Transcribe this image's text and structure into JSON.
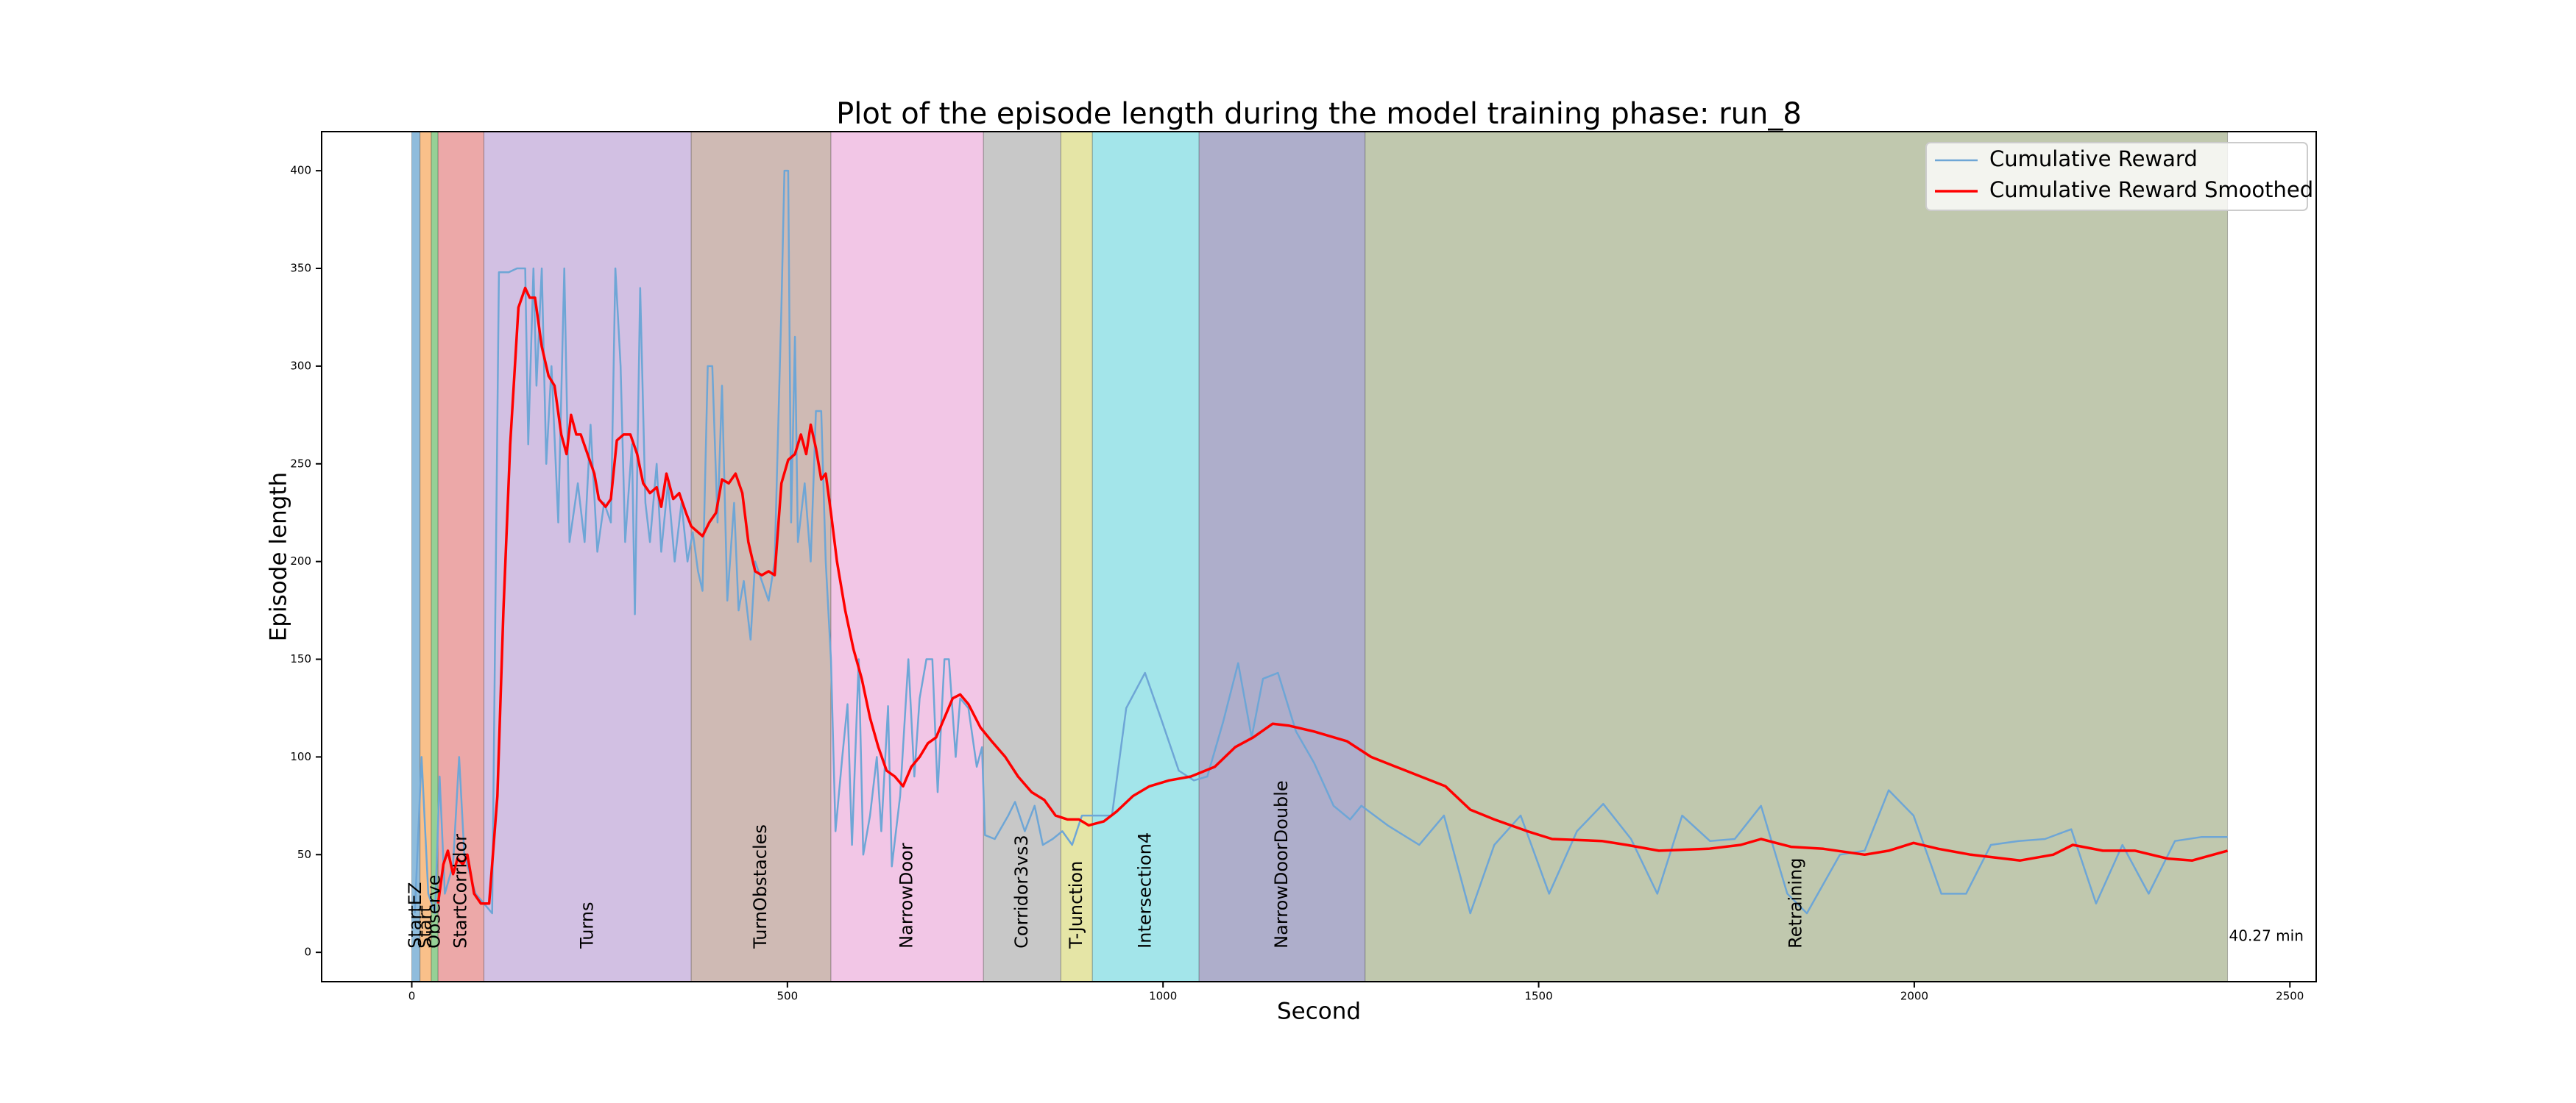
{
  "chart_data": {
    "type": "line",
    "title": "Plot of the episode length during the model training phase: run_8",
    "xlabel": "Second",
    "ylabel": "Episode length",
    "xlim": [
      -120,
      2535
    ],
    "ylim": [
      -15,
      420
    ],
    "xticks": [
      0,
      500,
      1000,
      1500,
      2000,
      2500
    ],
    "yticks": [
      0,
      50,
      100,
      150,
      200,
      250,
      300,
      350,
      400
    ],
    "legend": "upper right",
    "annotation": "40.27 min",
    "phases": [
      {
        "label": "StartEZ",
        "start": 0,
        "end": 11,
        "color": "#8fbcdc"
      },
      {
        "label": "Start",
        "start": 11,
        "end": 26,
        "color": "#f9c08a"
      },
      {
        "label": "Observe",
        "start": 26,
        "end": 35,
        "color": "#96d096"
      },
      {
        "label": "StartCorridor",
        "start": 35,
        "end": 96,
        "color": "#eca8a8"
      },
      {
        "label": "Turns",
        "start": 96,
        "end": 372,
        "color": "#d2c0e3"
      },
      {
        "label": "TurnObstacles",
        "start": 372,
        "end": 558,
        "color": "#cfbab4"
      },
      {
        "label": "NarrowDoor",
        "start": 558,
        "end": 761,
        "color": "#f2c6e6"
      },
      {
        "label": "Corridor3vs3",
        "start": 761,
        "end": 864,
        "color": "#c8c8c8"
      },
      {
        "label": "T-Junction",
        "start": 864,
        "end": 906,
        "color": "#e5e5a6"
      },
      {
        "label": "Intersection4",
        "start": 906,
        "end": 1048,
        "color": "#a3e5ea"
      },
      {
        "label": "NarrowDoorDouble",
        "start": 1048,
        "end": 1269,
        "color": "#aeaecb"
      },
      {
        "label": "Retraining",
        "start": 1269,
        "end": 2417,
        "color": "#c0c8ae"
      }
    ],
    "series": [
      {
        "name": "Cumulative Reward",
        "color": "#6ea6d6",
        "x": [
          4,
          13,
          22,
          31,
          37,
          44,
          55,
          63,
          70,
          85,
          96,
          107,
          116,
          129,
          140,
          151,
          155,
          162,
          166,
          173,
          179,
          186,
          195,
          203,
          210,
          221,
          230,
          238,
          247,
          256,
          265,
          271,
          278,
          284,
          293,
          297,
          304,
          311,
          317,
          326,
          332,
          341,
          350,
          359,
          367,
          374,
          381,
          387,
          394,
          400,
          407,
          413,
          420,
          429,
          435,
          442,
          451,
          457,
          466,
          475,
          483,
          492,
          496,
          501,
          505,
          510,
          514,
          523,
          531,
          538,
          545,
          551,
          558,
          564,
          573,
          580,
          586,
          595,
          601,
          610,
          619,
          625,
          634,
          639,
          650,
          661,
          669,
          676,
          685,
          693,
          700,
          709,
          715,
          724,
          730,
          741,
          752,
          759,
          763,
          776,
          794,
          803,
          816,
          829,
          840,
          853,
          866,
          879,
          892,
          916,
          932,
          951,
          976,
          997,
          1021,
          1041,
          1059,
          1080,
          1100,
          1118,
          1133,
          1153,
          1177,
          1201,
          1227,
          1249,
          1264,
          1299,
          1341,
          1374,
          1409,
          1441,
          1476,
          1514,
          1551,
          1586,
          1623,
          1658,
          1691,
          1728,
          1761,
          1796,
          1831,
          1857,
          1901,
          1934,
          1966,
          1999,
          2036,
          2069,
          2102,
          2139,
          2174,
          2209,
          2242,
          2277,
          2312,
          2347,
          2382,
          2417
        ],
        "values": [
          20,
          100,
          30,
          20,
          90,
          30,
          45,
          100,
          50,
          30,
          25,
          20,
          348,
          348,
          350,
          350,
          260,
          350,
          290,
          350,
          250,
          300,
          220,
          350,
          210,
          240,
          210,
          270,
          205,
          230,
          220,
          350,
          300,
          210,
          260,
          173,
          340,
          230,
          210,
          250,
          205,
          240,
          200,
          230,
          200,
          215,
          195,
          185,
          300,
          300,
          220,
          290,
          180,
          230,
          175,
          190,
          160,
          200,
          190,
          180,
          200,
          330,
          400,
          400,
          220,
          315,
          210,
          240,
          200,
          277,
          277,
          200,
          150,
          62,
          100,
          127,
          55,
          150,
          50,
          70,
          100,
          62,
          126,
          44,
          80,
          150,
          90,
          130,
          150,
          150,
          82,
          150,
          150,
          100,
          130,
          125,
          95,
          105,
          60,
          58,
          70,
          77,
          62,
          75,
          55,
          58,
          62,
          55,
          70,
          70,
          70,
          125,
          143,
          120,
          93,
          88,
          90,
          118,
          148,
          110,
          140,
          143,
          113,
          97,
          75,
          68,
          75,
          65,
          55,
          70,
          20,
          55,
          70,
          30,
          62,
          76,
          58,
          30,
          70,
          57,
          58,
          75,
          30,
          20,
          50,
          52,
          83,
          70,
          30,
          30,
          55,
          57,
          58,
          63,
          25,
          55,
          30,
          57,
          59,
          59
        ]
      },
      {
        "name": "Cumulative Reward Smoothed",
        "color": "#ff0000",
        "x": [
          35,
          42,
          48,
          55,
          61,
          68,
          74,
          83,
          92,
          103,
          114,
          122,
          131,
          142,
          151,
          157,
          164,
          173,
          182,
          190,
          199,
          206,
          212,
          219,
          225,
          234,
          243,
          249,
          258,
          265,
          273,
          282,
          291,
          300,
          308,
          317,
          326,
          332,
          339,
          348,
          356,
          365,
          372,
          378,
          387,
          396,
          405,
          413,
          422,
          431,
          440,
          448,
          457,
          466,
          475,
          483,
          492,
          501,
          510,
          518,
          525,
          531,
          538,
          545,
          551,
          558,
          566,
          577,
          588,
          599,
          610,
          621,
          632,
          643,
          654,
          665,
          676,
          687,
          698,
          709,
          720,
          730,
          741,
          757,
          772,
          790,
          807,
          825,
          842,
          857,
          873,
          888,
          901,
          921,
          938,
          960,
          982,
          1008,
          1037,
          1069,
          1096,
          1120,
          1146,
          1168,
          1201,
          1245,
          1277,
          1310,
          1343,
          1376,
          1409,
          1441,
          1485,
          1518,
          1584,
          1617,
          1660,
          1726,
          1769,
          1796,
          1836,
          1879,
          1934,
          1966,
          1999,
          2032,
          2075,
          2141,
          2185,
          2211,
          2251,
          2294,
          2337,
          2370,
          2417
        ],
        "values": [
          25,
          45,
          52,
          40,
          48,
          45,
          50,
          30,
          25,
          25,
          80,
          175,
          260,
          330,
          340,
          335,
          335,
          310,
          295,
          290,
          265,
          255,
          275,
          265,
          265,
          255,
          245,
          232,
          228,
          232,
          262,
          265,
          265,
          255,
          240,
          235,
          238,
          228,
          245,
          232,
          235,
          225,
          218,
          216,
          213,
          220,
          225,
          242,
          240,
          245,
          235,
          210,
          195,
          193,
          195,
          193,
          240,
          252,
          255,
          265,
          255,
          270,
          258,
          242,
          245,
          225,
          200,
          175,
          155,
          140,
          120,
          105,
          93,
          90,
          85,
          95,
          100,
          107,
          110,
          120,
          130,
          132,
          127,
          115,
          108,
          100,
          90,
          82,
          78,
          70,
          68,
          68,
          65,
          67,
          72,
          80,
          85,
          88,
          90,
          95,
          105,
          110,
          117,
          116,
          113,
          108,
          100,
          95,
          90,
          85,
          73,
          68,
          62,
          58,
          57,
          55,
          52,
          53,
          55,
          58,
          54,
          53,
          50,
          52,
          56,
          53,
          50,
          47,
          50,
          55,
          52,
          52,
          48,
          47,
          52
        ]
      }
    ]
  }
}
